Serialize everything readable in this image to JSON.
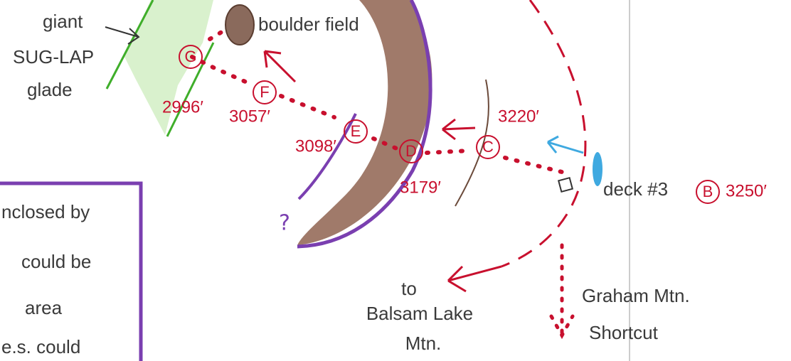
{
  "glade_label": [
    "giant",
    "SUG-LAP",
    "glade"
  ],
  "boulder_label": "boulder field",
  "waypoints": [
    {
      "label": "G",
      "elevation": "2996′"
    },
    {
      "label": "F",
      "elevation": "3057′"
    },
    {
      "label": "E",
      "elevation": "3098′"
    },
    {
      "label": "D",
      "elevation": "3179′"
    },
    {
      "label": "C",
      "elevation": "3220′"
    },
    {
      "label": "B",
      "elevation": "3250′"
    }
  ],
  "deck_label": "deck #3",
  "question_mark": "?",
  "note_lines": [
    "nclosed by",
    "could be",
    "area",
    "e.s. could"
  ],
  "balsam_label": [
    "to",
    "Balsam Lake",
    "Mtn."
  ],
  "graham_label": [
    "Graham Mtn.",
    "Shortcut"
  ]
}
